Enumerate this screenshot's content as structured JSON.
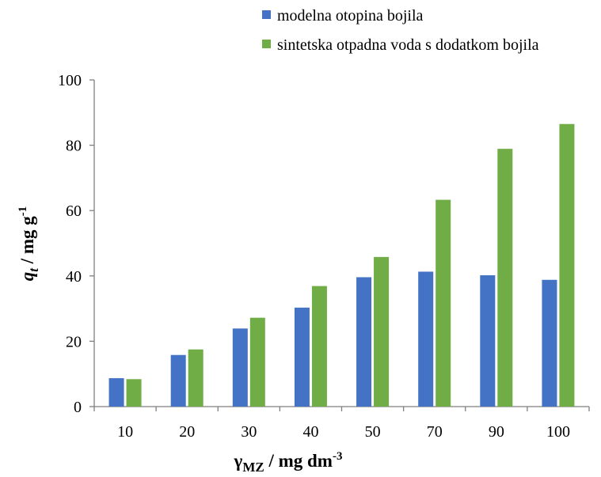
{
  "chart_data": {
    "type": "bar",
    "categories": [
      "10",
      "20",
      "30",
      "40",
      "50",
      "70",
      "90",
      "100"
    ],
    "series": [
      {
        "name": "modelna otopina bojila",
        "color": "#4472C4",
        "values": [
          8.7,
          15.8,
          23.9,
          30.3,
          39.6,
          41.3,
          40.2,
          38.8
        ]
      },
      {
        "name": "sintetska otpadna voda s dodatkom bojila",
        "color": "#70AD47",
        "values": [
          8.4,
          17.5,
          27.2,
          36.9,
          45.8,
          63.3,
          78.9,
          86.5
        ]
      }
    ],
    "xlabel": {
      "main": "γ",
      "sub": "MZ",
      "unit": " / mg dm",
      "sup": "-3"
    },
    "ylabel": {
      "main": "q",
      "sub": "t",
      "unit": " / mg g",
      "sup": "-1"
    },
    "ylim": [
      0,
      100
    ],
    "yticks": [
      0,
      20,
      40,
      60,
      80,
      100
    ],
    "grid": false,
    "legend": "top-right"
  }
}
